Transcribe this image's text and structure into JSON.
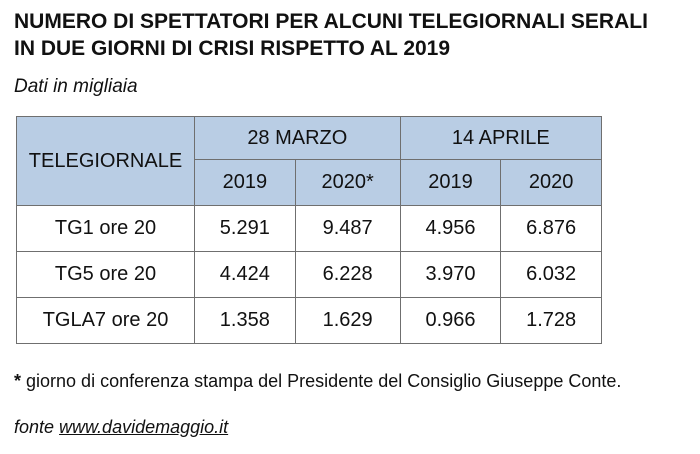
{
  "title_line1": "NUMERO DI SPETTATORI PER ALCUNI TELEGIORNALI SERALI",
  "title_line2": "IN DUE GIORNI DI CRISI RISPETTO AL 2019",
  "subtitle": "Dati in migliaia",
  "table": {
    "first_header": "TELEGIORNALE",
    "groups": [
      "28 MARZO",
      "14 APRILE"
    ],
    "year_headers": [
      "2019",
      "2020*",
      "2019",
      "2020"
    ],
    "rows": [
      {
        "label": "TG1 ore 20",
        "values": [
          "5.291",
          "9.487",
          "4.956",
          "6.876"
        ]
      },
      {
        "label": "TG5 ore 20",
        "values": [
          "4.424",
          "6.228",
          "3.970",
          "6.032"
        ]
      },
      {
        "label": "TGLA7 ore 20",
        "values": [
          "1.358",
          "1.629",
          "0.966",
          "1.728"
        ]
      }
    ]
  },
  "note": {
    "marker": "*",
    "text": " giorno di conferenza stampa del Presidente del Consiglio Giuseppe Conte."
  },
  "source": {
    "prefix": "fonte ",
    "link": "www.davidemaggio.it"
  },
  "colors": {
    "header_background": "#b9cde4",
    "border": "#6f6f6f"
  },
  "chart_data": {
    "type": "table",
    "title": "NUMERO DI SPETTATORI PER ALCUNI TELEGIORNALI SERALI IN DUE GIORNI DI CRISI RISPETTO AL 2019",
    "subtitle": "Dati in migliaia",
    "columns": [
      "TELEGIORNALE",
      "28 MARZO 2019",
      "28 MARZO 2020*",
      "14 APRILE 2019",
      "14 APRILE 2020"
    ],
    "categories": [
      "TG1 ore 20",
      "TG5 ore 20",
      "TGLA7 ore 20"
    ],
    "series": [
      {
        "name": "28 MARZO 2019",
        "values": [
          5291,
          4424,
          1358
        ]
      },
      {
        "name": "28 MARZO 2020*",
        "values": [
          9487,
          6228,
          1629
        ]
      },
      {
        "name": "14 APRILE 2019",
        "values": [
          4956,
          3970,
          966
        ]
      },
      {
        "name": "14 APRILE 2020",
        "values": [
          6876,
          6032,
          1728
        ]
      }
    ]
  }
}
